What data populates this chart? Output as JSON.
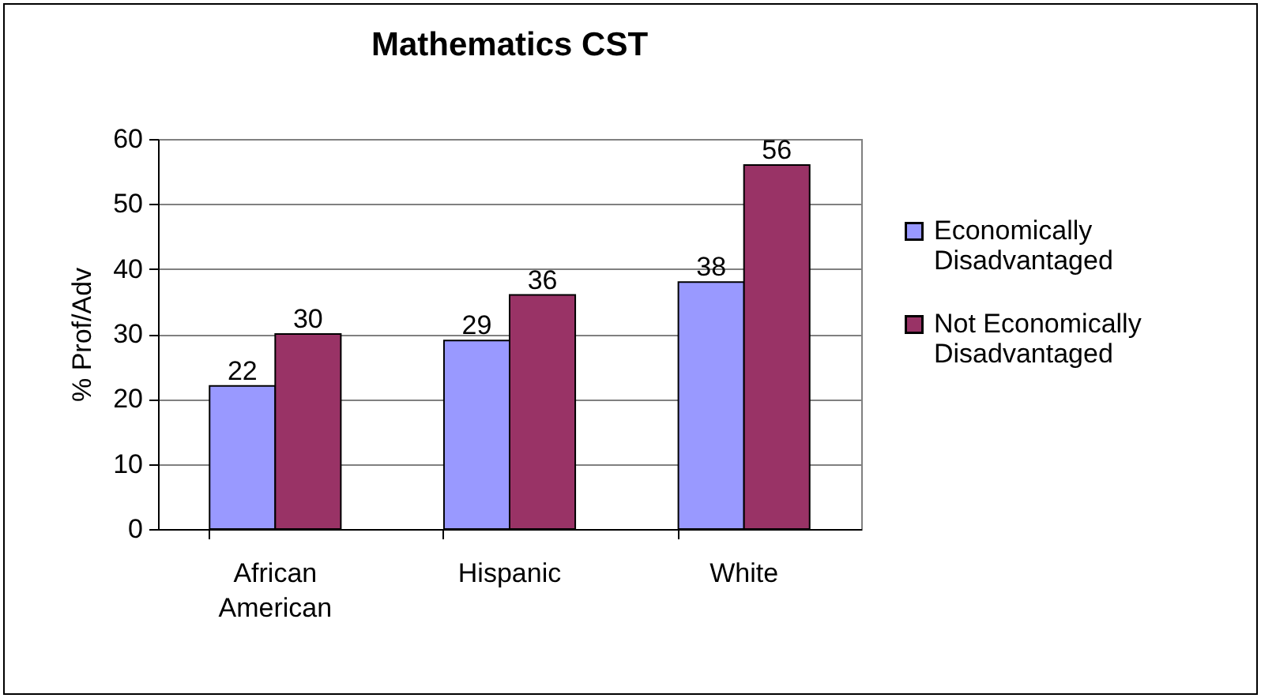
{
  "chart_data": {
    "type": "bar",
    "title": "Mathematics CST",
    "ylabel": "% Prof/Adv",
    "categories": [
      "African American",
      "Hispanic",
      "White"
    ],
    "series": [
      {
        "name": "Economically Disadvantaged",
        "color": "#9999ff",
        "values": [
          22,
          29,
          38
        ]
      },
      {
        "name": "Not Economically Disadvantaged",
        "color": "#993366",
        "values": [
          30,
          36,
          56
        ]
      }
    ],
    "ylim": [
      0,
      60
    ],
    "yticks": [
      0,
      10,
      20,
      30,
      40,
      50,
      60
    ],
    "grid": "y",
    "legend": "right",
    "data_labels": true
  }
}
